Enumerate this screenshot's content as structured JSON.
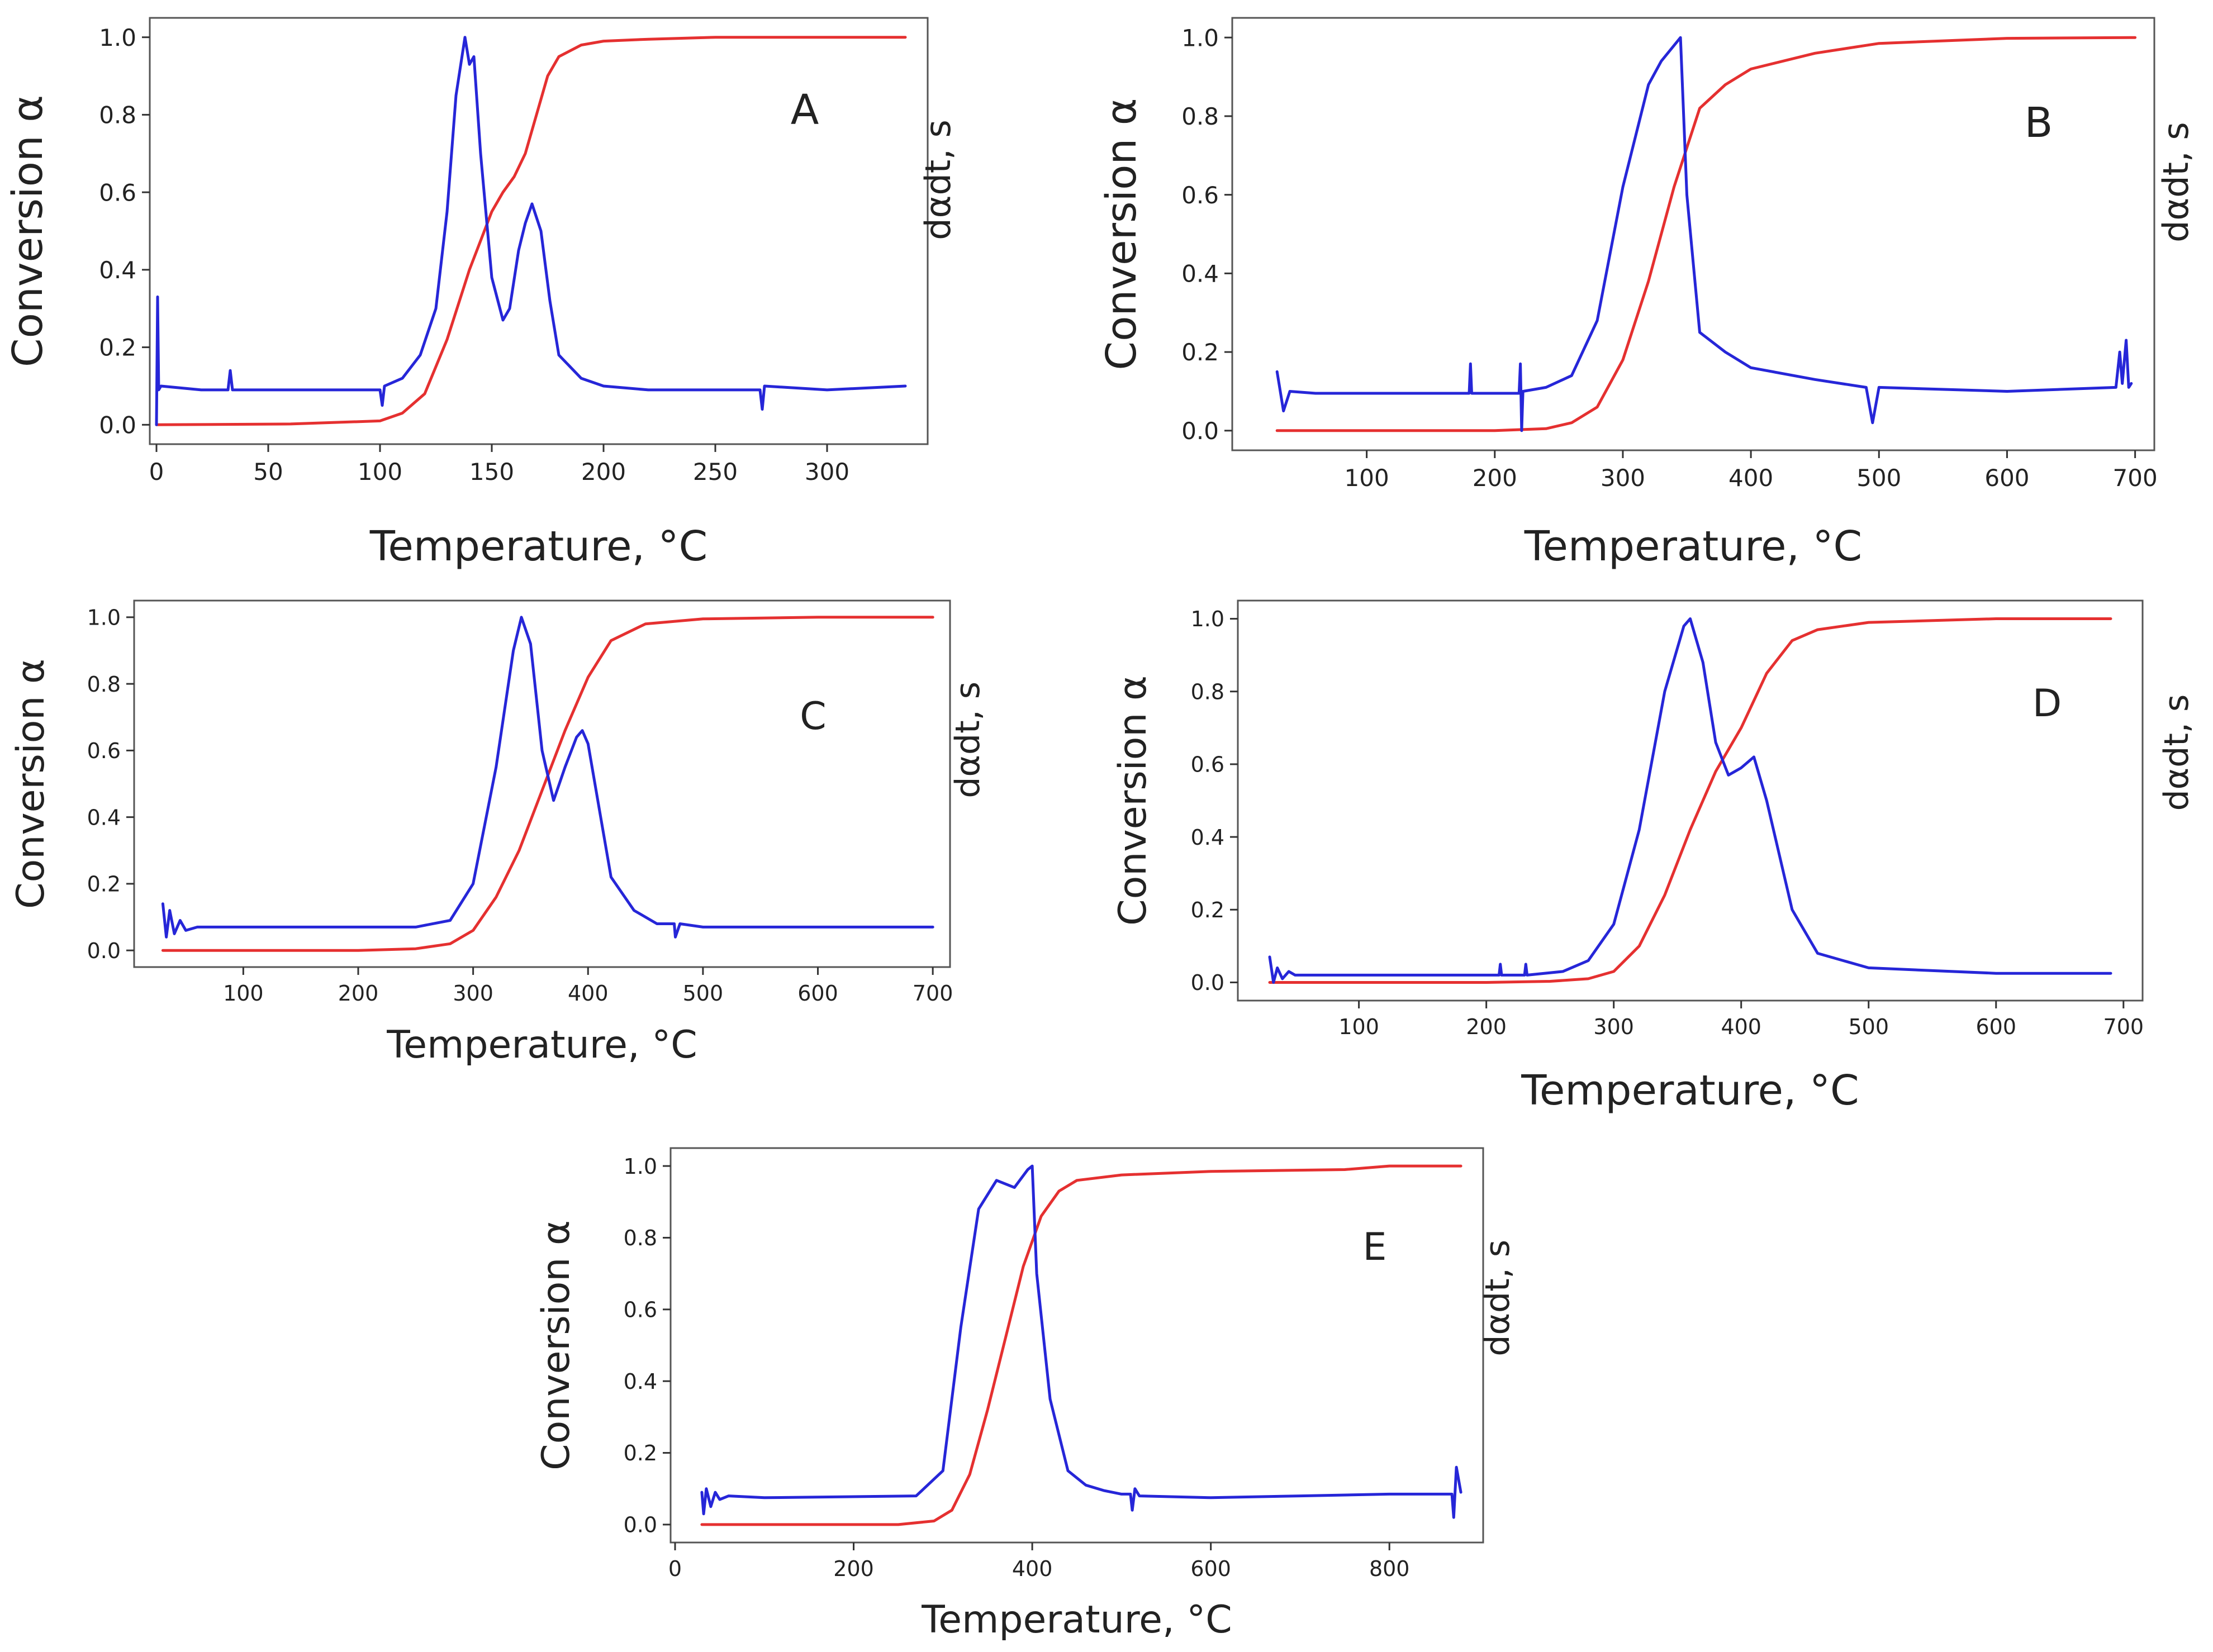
{
  "figure": {
    "title": "Conversion and conversion rate versus temperature (panels A–E)"
  },
  "colors": {
    "conversion": "#e53030",
    "rate": "#2626d8",
    "axis": "#333333",
    "frame": "#555555",
    "text": "#222222"
  },
  "chart_data": [
    {
      "panel": "A",
      "type": "line",
      "xlabel": "Temperature, °C",
      "ylabel": "Conversion α",
      "ylabel2": "dαdt, s",
      "xlim": [
        -3,
        345
      ],
      "ylim": [
        -0.05,
        1.05
      ],
      "xticks": [
        0,
        50,
        100,
        150,
        200,
        250,
        300
      ],
      "yticks": [
        "0.0",
        "0.2",
        "0.4",
        "0.6",
        "0.8",
        "1.0"
      ],
      "series": [
        {
          "name": "conversion",
          "color": "#e53030",
          "x": [
            0,
            60,
            100,
            110,
            120,
            130,
            140,
            150,
            155,
            160,
            165,
            170,
            175,
            180,
            190,
            200,
            220,
            250,
            300,
            335
          ],
          "y": [
            0.0,
            0.002,
            0.01,
            0.03,
            0.08,
            0.22,
            0.4,
            0.55,
            0.6,
            0.64,
            0.7,
            0.8,
            0.9,
            0.95,
            0.98,
            0.99,
            0.995,
            1.0,
            1.0,
            1.0
          ]
        },
        {
          "name": "dα/dt",
          "color": "#2626d8",
          "x": [
            0,
            0.5,
            1,
            2,
            20,
            32,
            33,
            34,
            60,
            100,
            101,
            102,
            110,
            118,
            125,
            130,
            134,
            138,
            140,
            142,
            145,
            150,
            155,
            158,
            162,
            165,
            168,
            172,
            176,
            180,
            190,
            200,
            220,
            250,
            270,
            271,
            272,
            300,
            335
          ],
          "y": [
            0.0,
            0.33,
            0.09,
            0.1,
            0.09,
            0.09,
            0.14,
            0.09,
            0.09,
            0.09,
            0.05,
            0.1,
            0.12,
            0.18,
            0.3,
            0.55,
            0.85,
            1.0,
            0.93,
            0.95,
            0.7,
            0.38,
            0.27,
            0.3,
            0.45,
            0.52,
            0.57,
            0.5,
            0.32,
            0.18,
            0.12,
            0.1,
            0.09,
            0.09,
            0.09,
            0.04,
            0.1,
            0.09,
            0.1
          ]
        }
      ],
      "annotation": "A"
    },
    {
      "panel": "B",
      "type": "line",
      "xlabel": "Temperature, °C",
      "ylabel": "Conversion α",
      "ylabel2": "dαdt, s",
      "xlim": [
        -5,
        715
      ],
      "ylim": [
        -0.05,
        1.05
      ],
      "xticks": [
        100,
        200,
        300,
        400,
        500,
        600,
        700
      ],
      "yticks": [
        "0.0",
        "0.2",
        "0.4",
        "0.6",
        "0.8",
        "1.0"
      ],
      "series": [
        {
          "name": "conversion",
          "color": "#e53030",
          "x": [
            30,
            200,
            240,
            260,
            280,
            300,
            320,
            340,
            360,
            380,
            400,
            450,
            500,
            600,
            700
          ],
          "y": [
            0.0,
            0.0,
            0.005,
            0.02,
            0.06,
            0.18,
            0.38,
            0.62,
            0.82,
            0.88,
            0.92,
            0.96,
            0.985,
            0.998,
            1.0
          ]
        },
        {
          "name": "dα/dt",
          "color": "#2626d8",
          "x": [
            30,
            35,
            40,
            60,
            100,
            180,
            181,
            182,
            219,
            220,
            221,
            222,
            240,
            260,
            280,
            300,
            320,
            330,
            340,
            345,
            350,
            360,
            380,
            400,
            450,
            490,
            495,
            500,
            600,
            685,
            688,
            690,
            693,
            695,
            697
          ],
          "y": [
            0.15,
            0.05,
            0.1,
            0.095,
            0.095,
            0.095,
            0.17,
            0.095,
            0.095,
            0.17,
            0.0,
            0.1,
            0.11,
            0.14,
            0.28,
            0.62,
            0.88,
            0.94,
            0.98,
            1.0,
            0.6,
            0.25,
            0.2,
            0.16,
            0.13,
            0.11,
            0.02,
            0.11,
            0.1,
            0.11,
            0.2,
            0.12,
            0.23,
            0.11,
            0.12
          ]
        }
      ],
      "annotation": "B"
    },
    {
      "panel": "C",
      "type": "line",
      "xlabel": "Temperature, °C",
      "ylabel": "Conversion α",
      "ylabel2": "dαdt, s",
      "xlim": [
        5,
        715
      ],
      "ylim": [
        -0.05,
        1.05
      ],
      "xticks": [
        100,
        200,
        300,
        400,
        500,
        600,
        700
      ],
      "yticks": [
        "0.0",
        "0.2",
        "0.4",
        "0.6",
        "0.8",
        "1.0"
      ],
      "series": [
        {
          "name": "conversion",
          "color": "#e53030",
          "x": [
            30,
            200,
            250,
            280,
            300,
            320,
            340,
            360,
            380,
            400,
            420,
            450,
            500,
            600,
            700
          ],
          "y": [
            0.0,
            0.0,
            0.005,
            0.02,
            0.06,
            0.16,
            0.3,
            0.48,
            0.66,
            0.82,
            0.93,
            0.98,
            0.995,
            1.0,
            1.0
          ]
        },
        {
          "name": "dα/dt",
          "color": "#2626d8",
          "x": [
            30,
            33,
            36,
            40,
            45,
            50,
            60,
            100,
            250,
            280,
            300,
            320,
            335,
            342,
            350,
            360,
            370,
            380,
            390,
            395,
            400,
            410,
            420,
            440,
            460,
            475,
            476,
            480,
            500,
            600,
            650,
            700
          ],
          "y": [
            0.14,
            0.04,
            0.12,
            0.05,
            0.09,
            0.06,
            0.07,
            0.07,
            0.07,
            0.09,
            0.2,
            0.55,
            0.9,
            1.0,
            0.92,
            0.6,
            0.45,
            0.55,
            0.64,
            0.66,
            0.62,
            0.42,
            0.22,
            0.12,
            0.08,
            0.08,
            0.04,
            0.08,
            0.07,
            0.07,
            0.07,
            0.07
          ]
        }
      ],
      "annotation": "C"
    },
    {
      "panel": "D",
      "type": "line",
      "xlabel": "Temperature, °C",
      "ylabel": "Conversion α",
      "ylabel2": "dαdt, s",
      "xlim": [
        5,
        715
      ],
      "ylim": [
        -0.05,
        1.05
      ],
      "xticks": [
        100,
        200,
        300,
        400,
        500,
        600,
        700
      ],
      "yticks": [
        "0.0",
        "0.2",
        "0.4",
        "0.6",
        "0.8",
        "1.0"
      ],
      "series": [
        {
          "name": "conversion",
          "color": "#e53030",
          "x": [
            30,
            200,
            250,
            280,
            300,
            320,
            340,
            360,
            380,
            400,
            420,
            440,
            460,
            500,
            600,
            690
          ],
          "y": [
            0.0,
            0.0,
            0.003,
            0.01,
            0.03,
            0.1,
            0.24,
            0.42,
            0.58,
            0.7,
            0.85,
            0.94,
            0.97,
            0.99,
            1.0,
            1.0
          ]
        },
        {
          "name": "dα/dt",
          "color": "#2626d8",
          "x": [
            30,
            33,
            36,
            40,
            45,
            50,
            60,
            100,
            200,
            210,
            211,
            212,
            230,
            231,
            232,
            260,
            280,
            300,
            320,
            340,
            355,
            360,
            370,
            380,
            390,
            400,
            410,
            420,
            440,
            460,
            500,
            600,
            690
          ],
          "y": [
            0.07,
            0.0,
            0.04,
            0.01,
            0.03,
            0.02,
            0.02,
            0.02,
            0.02,
            0.02,
            0.05,
            0.02,
            0.02,
            0.05,
            0.02,
            0.03,
            0.06,
            0.16,
            0.42,
            0.8,
            0.98,
            1.0,
            0.88,
            0.66,
            0.57,
            0.59,
            0.62,
            0.5,
            0.2,
            0.08,
            0.04,
            0.025,
            0.025
          ]
        }
      ],
      "annotation": "D"
    },
    {
      "panel": "E",
      "type": "line",
      "xlabel": "Temperature, °C",
      "ylabel": "Conversion α",
      "ylabel2": "dαdt, s",
      "xlim": [
        -5,
        905
      ],
      "ylim": [
        -0.05,
        1.05
      ],
      "xticks": [
        0,
        200,
        400,
        600,
        800
      ],
      "yticks": [
        "0.0",
        "0.2",
        "0.4",
        "0.6",
        "0.8",
        "1.0"
      ],
      "series": [
        {
          "name": "conversion",
          "color": "#e53030",
          "x": [
            30,
            250,
            290,
            310,
            330,
            350,
            370,
            390,
            410,
            430,
            450,
            500,
            600,
            750,
            800,
            880
          ],
          "y": [
            0.0,
            0.0,
            0.01,
            0.04,
            0.14,
            0.32,
            0.52,
            0.72,
            0.86,
            0.93,
            0.96,
            0.975,
            0.985,
            0.99,
            1.0,
            1.0
          ]
        },
        {
          "name": "dα/dt",
          "color": "#2626d8",
          "x": [
            30,
            32,
            35,
            40,
            45,
            50,
            60,
            100,
            270,
            300,
            320,
            340,
            360,
            370,
            380,
            395,
            400,
            405,
            420,
            440,
            460,
            480,
            500,
            510,
            512,
            515,
            520,
            600,
            700,
            800,
            870,
            872,
            875,
            880
          ],
          "y": [
            0.09,
            0.03,
            0.1,
            0.05,
            0.09,
            0.07,
            0.08,
            0.075,
            0.08,
            0.15,
            0.55,
            0.88,
            0.96,
            0.95,
            0.94,
            0.99,
            1.0,
            0.7,
            0.35,
            0.15,
            0.11,
            0.095,
            0.085,
            0.085,
            0.04,
            0.1,
            0.08,
            0.075,
            0.08,
            0.085,
            0.085,
            0.02,
            0.16,
            0.09
          ]
        }
      ],
      "annotation": "E"
    }
  ]
}
